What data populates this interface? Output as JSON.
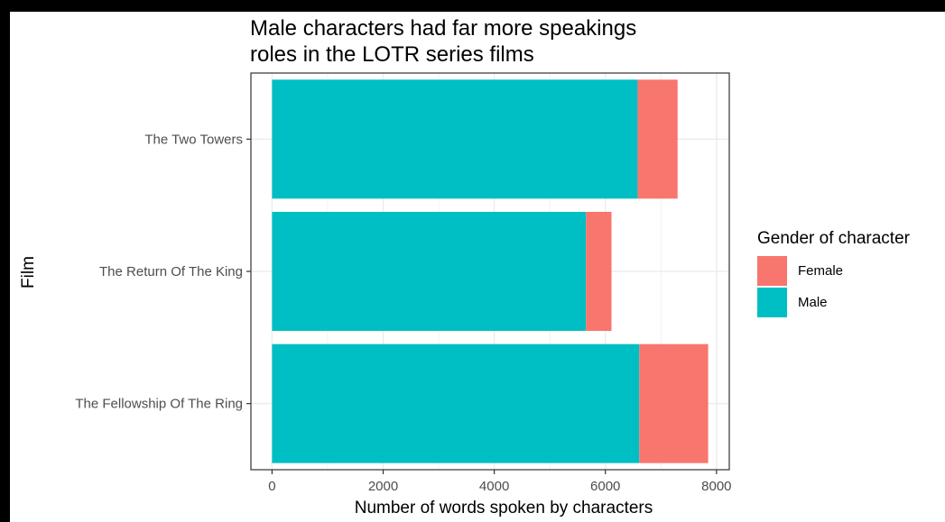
{
  "chart_data": {
    "type": "bar",
    "orientation": "horizontal",
    "stacked": true,
    "title_lines": [
      "Male characters had far more speakings",
      "roles in the LOTR series films"
    ],
    "xlabel": "Number of words spoken by characters",
    "ylabel": "Film",
    "xlim": [
      -380,
      8230
    ],
    "xticks": [
      0,
      2000,
      4000,
      6000,
      8000
    ],
    "x_tick_labels": [
      "0",
      "2000",
      "4000",
      "6000",
      "8000"
    ],
    "grid": true,
    "categories": [
      "The Two Towers",
      "The Return Of The King",
      "The Fellowship Of The Ring"
    ],
    "series": [
      {
        "name": "Male",
        "color": "#00BFC4",
        "values": [
          6580,
          5650,
          6610
        ]
      },
      {
        "name": "Female",
        "color": "#F8766D",
        "values": [
          720,
          460,
          1240
        ]
      }
    ],
    "legend": {
      "title": "Gender of character",
      "position": "right",
      "items": [
        {
          "label": "Female",
          "color": "#F8766D"
        },
        {
          "label": "Male",
          "color": "#00BFC4"
        }
      ]
    }
  }
}
